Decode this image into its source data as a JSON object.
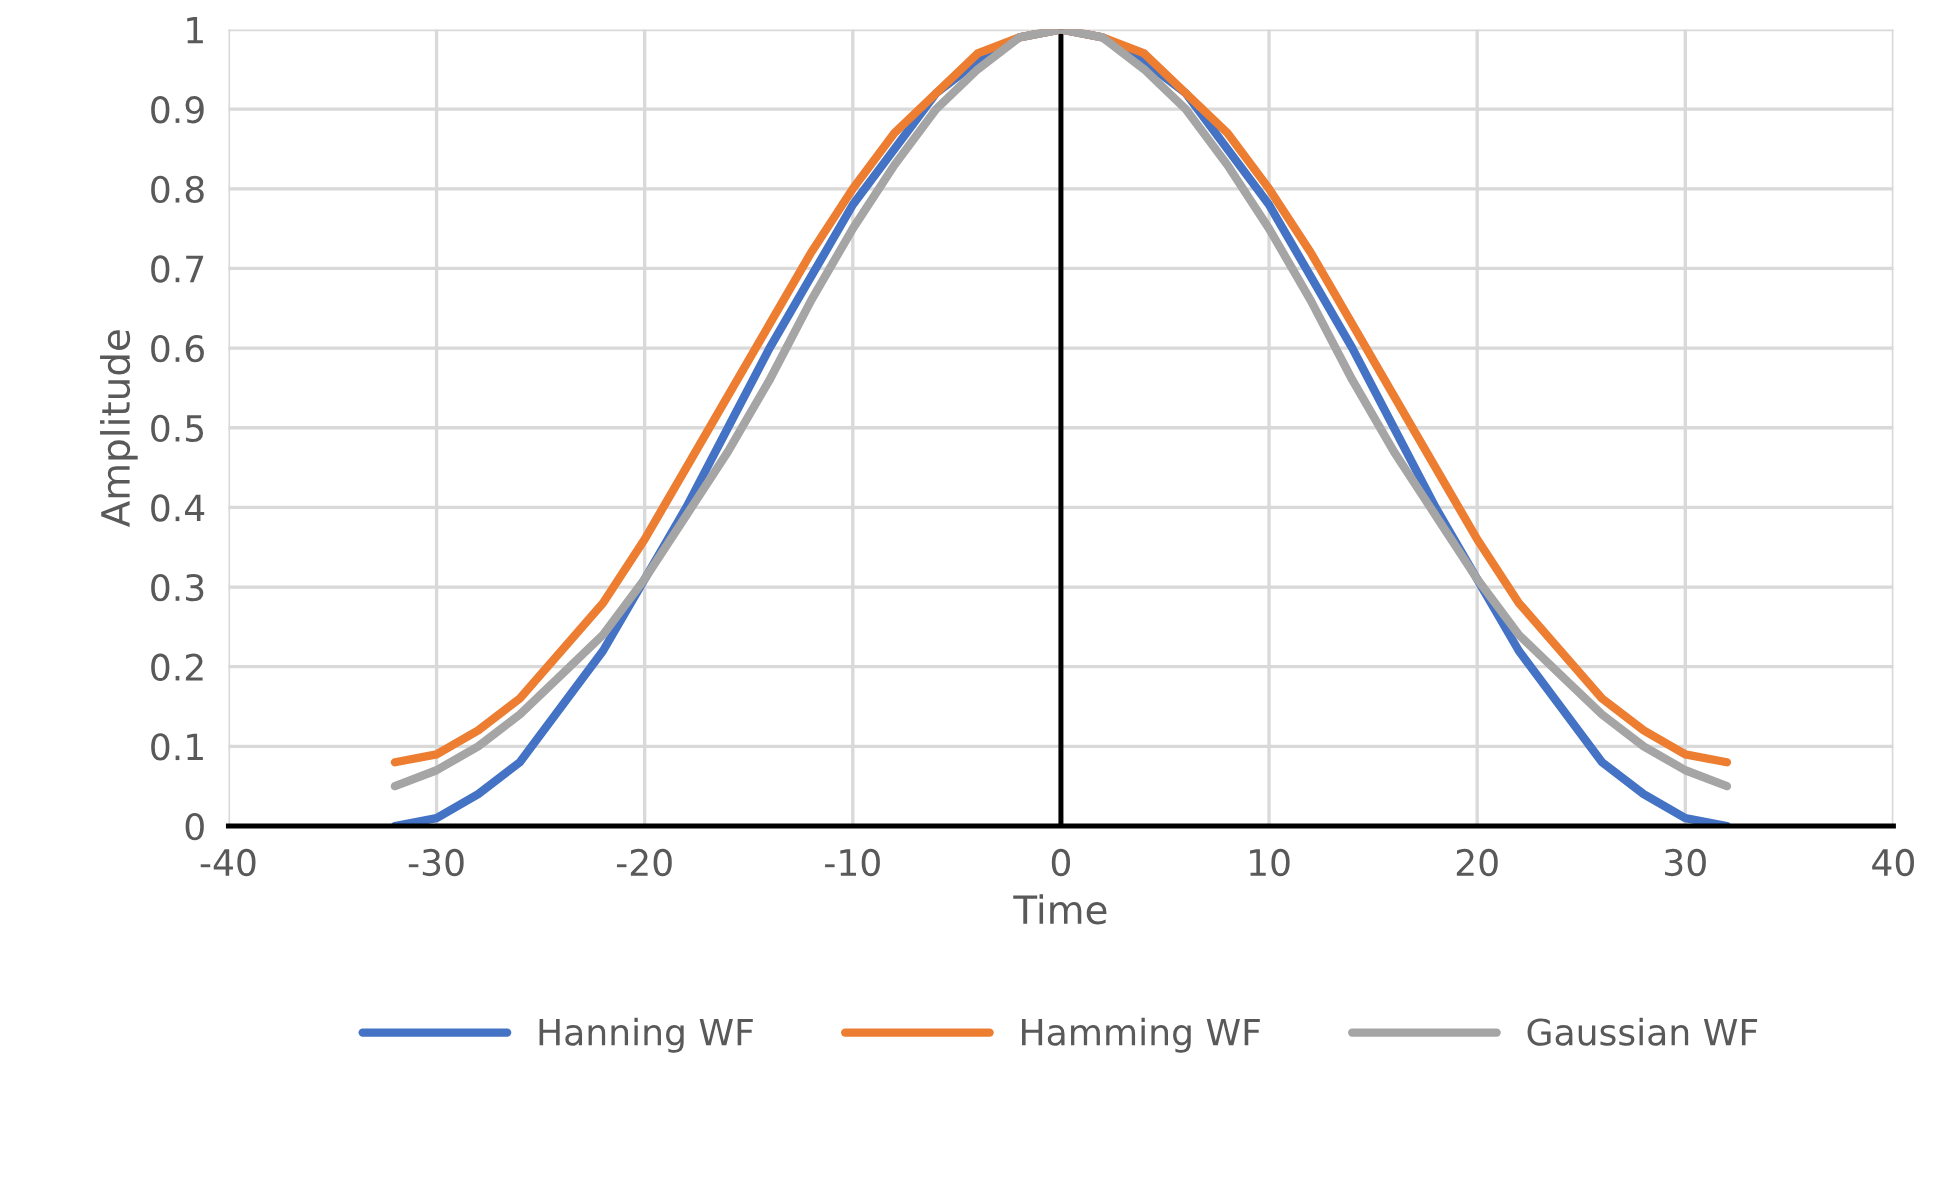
{
  "chart_data": {
    "type": "line",
    "xlabel": "Time",
    "ylabel": "Amplitude",
    "x": [
      -32,
      -30,
      -28,
      -26,
      -24,
      -22,
      -20,
      -18,
      -16,
      -14,
      -12,
      -10,
      -8,
      -6,
      -4,
      -2,
      0,
      2,
      4,
      6,
      8,
      10,
      12,
      14,
      16,
      18,
      20,
      22,
      24,
      26,
      28,
      30,
      32
    ],
    "series": [
      {
        "name": "Hanning WF",
        "color": "#4472c4",
        "values": [
          0,
          0.01,
          0.04,
          0.08,
          0.15,
          0.22,
          0.31,
          0.4,
          0.5,
          0.6,
          0.69,
          0.78,
          0.85,
          0.92,
          0.96,
          0.99,
          1,
          0.99,
          0.96,
          0.92,
          0.85,
          0.78,
          0.69,
          0.6,
          0.5,
          0.4,
          0.31,
          0.22,
          0.15,
          0.08,
          0.04,
          0.01,
          0
        ]
      },
      {
        "name": "Hamming WF",
        "color": "#ed7d31",
        "values": [
          0.08,
          0.09,
          0.12,
          0.16,
          0.22,
          0.28,
          0.36,
          0.45,
          0.54,
          0.63,
          0.72,
          0.8,
          0.87,
          0.92,
          0.97,
          0.99,
          1,
          0.99,
          0.97,
          0.92,
          0.87,
          0.8,
          0.72,
          0.63,
          0.54,
          0.45,
          0.36,
          0.28,
          0.22,
          0.16,
          0.12,
          0.09,
          0.08
        ]
      },
      {
        "name": "Gaussian WF",
        "color": "#a5a5a5",
        "values": [
          0.05,
          0.07,
          0.1,
          0.14,
          0.19,
          0.24,
          0.31,
          0.39,
          0.47,
          0.56,
          0.66,
          0.75,
          0.83,
          0.9,
          0.95,
          0.99,
          1,
          0.99,
          0.95,
          0.9,
          0.83,
          0.75,
          0.66,
          0.56,
          0.47,
          0.39,
          0.31,
          0.24,
          0.19,
          0.14,
          0.1,
          0.07,
          0.05
        ]
      }
    ],
    "xlim": [
      -40,
      40
    ],
    "xticks": [
      -40,
      -30,
      -20,
      -10,
      0,
      10,
      20,
      30,
      40
    ],
    "ylim": [
      0,
      1
    ],
    "yticks": [
      0,
      0.1,
      0.2,
      0.3,
      0.4,
      0.5,
      0.6,
      0.7,
      0.8,
      0.9,
      1
    ],
    "grid": true,
    "legend": "bottom",
    "marker": "none",
    "line_style": "solid"
  }
}
